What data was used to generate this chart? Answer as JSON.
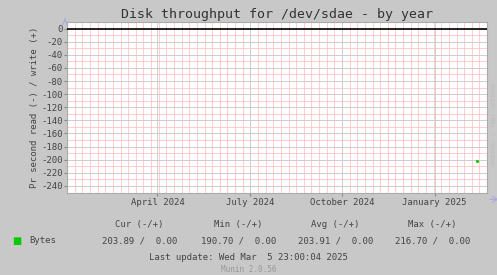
{
  "title": "Disk throughput for /dev/sdae - by year",
  "ylabel": "Pr second read (-) / write (+)",
  "background_color": "#c8c8c8",
  "plot_background_color": "#ffffff",
  "grid_color_minor": "#ffaaaa",
  "grid_color_major": "#cccccc",
  "ylim": [
    -250,
    10
  ],
  "yticks": [
    0,
    -20,
    -40,
    -60,
    -80,
    -100,
    -120,
    -140,
    -160,
    -180,
    -200,
    -220,
    -240
  ],
  "x_tick_labels": [
    "April 2024",
    "July 2024",
    "October 2024",
    "January 2025"
  ],
  "x_tick_positions": [
    0.215,
    0.435,
    0.655,
    0.875
  ],
  "legend_label": "Bytes",
  "legend_color": "#00cc00",
  "cur_read": "203.89",
  "cur_write": "0.00",
  "min_read": "190.70",
  "min_write": "0.00",
  "avg_read": "203.91",
  "avg_write": "0.00",
  "max_read": "216.70",
  "max_write": "0.00",
  "last_update": "Last update: Wed Mar  5 23:00:04 2025",
  "munin_version": "Munin 2.0.56",
  "watermark": "RRDTOOL / TOBI OETIKER",
  "title_fontsize": 9.5,
  "axis_fontsize": 6.5,
  "stats_fontsize": 6.5
}
